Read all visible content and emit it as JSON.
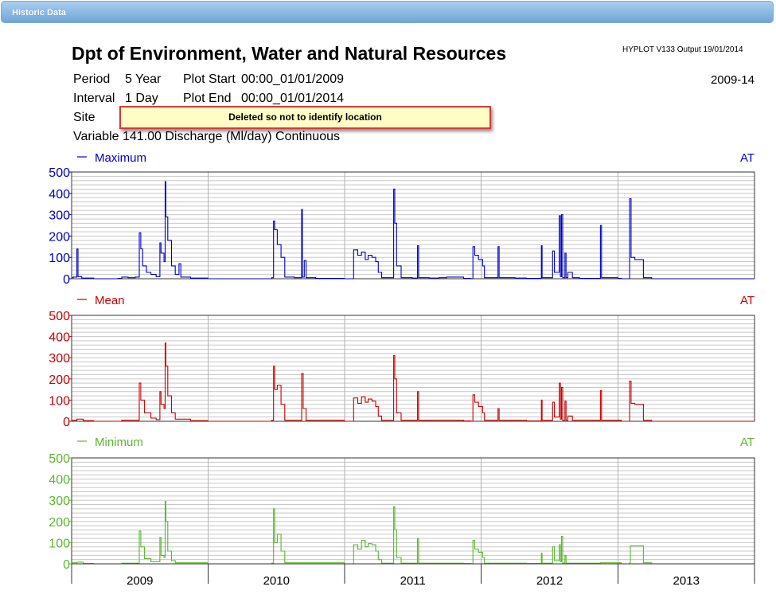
{
  "window": {
    "title": "Historic Data"
  },
  "report": {
    "title": "Dpt of Environment, Water and Natural Resources",
    "version": "HYPLOT V133  Output 19/01/2014",
    "date_range": "2009-14",
    "period_label": "Period",
    "period_value": "5 Year",
    "plot_start_label": "Plot Start",
    "plot_start_value": "00:00_01/01/2009",
    "interval_label": "Interval",
    "interval_value": "1 Day",
    "plot_end_label": "Plot End",
    "plot_end_value": "00:00_01/01/2014",
    "site_label": "Site",
    "site_note": "Deleted so not to identify location",
    "variable_line": "Variable 141.00  Discharge (Ml/day)  Continuous"
  },
  "chart_data": {
    "type": "line",
    "x_categories": [
      "2009",
      "2010",
      "2011",
      "2012",
      "2013"
    ],
    "xlim": [
      "2009-01-01",
      "2014-01-01"
    ],
    "grid": true,
    "series": [
      {
        "name": "Maximum",
        "tag": "AT",
        "color": "#0000cc",
        "ylim": [
          0,
          500
        ],
        "yticks": [
          0,
          100,
          200,
          300,
          400,
          500
        ],
        "points": [
          [
            "2009-01-01",
            5
          ],
          [
            "2009-01-05",
            8
          ],
          [
            "2009-01-15",
            140
          ],
          [
            "2009-01-18",
            10
          ],
          [
            "2009-01-28",
            3
          ],
          [
            "2009-03-01",
            0
          ],
          [
            "2009-05-05",
            2
          ],
          [
            "2009-05-15",
            8
          ],
          [
            "2009-06-01",
            5
          ],
          [
            "2009-06-20",
            8
          ],
          [
            "2009-07-01",
            215
          ],
          [
            "2009-07-05",
            140
          ],
          [
            "2009-07-10",
            60
          ],
          [
            "2009-07-20",
            30
          ],
          [
            "2009-08-01",
            20
          ],
          [
            "2009-08-15",
            10
          ],
          [
            "2009-08-25",
            168
          ],
          [
            "2009-08-28",
            120
          ],
          [
            "2009-09-05",
            80
          ],
          [
            "2009-09-08",
            455
          ],
          [
            "2009-09-10",
            290
          ],
          [
            "2009-09-15",
            180
          ],
          [
            "2009-09-25",
            60
          ],
          [
            "2009-10-05",
            20
          ],
          [
            "2009-10-15",
            70
          ],
          [
            "2009-10-20",
            8
          ],
          [
            "2009-11-15",
            3
          ],
          [
            "2009-12-31",
            0
          ],
          [
            "2010-06-01",
            0
          ],
          [
            "2010-06-20",
            5
          ],
          [
            "2010-06-25",
            270
          ],
          [
            "2010-06-28",
            230
          ],
          [
            "2010-07-05",
            160
          ],
          [
            "2010-07-15",
            100
          ],
          [
            "2010-07-25",
            8
          ],
          [
            "2010-08-20",
            5
          ],
          [
            "2010-09-05",
            5
          ],
          [
            "2010-09-08",
            325
          ],
          [
            "2010-09-10",
            8
          ],
          [
            "2010-09-15",
            85
          ],
          [
            "2010-09-20",
            5
          ],
          [
            "2010-10-15",
            2
          ],
          [
            "2010-12-31",
            0
          ],
          [
            "2011-01-20",
            0
          ],
          [
            "2011-01-25",
            135
          ],
          [
            "2011-02-05",
            110
          ],
          [
            "2011-02-15",
            125
          ],
          [
            "2011-02-25",
            90
          ],
          [
            "2011-03-05",
            110
          ],
          [
            "2011-03-15",
            100
          ],
          [
            "2011-03-25",
            80
          ],
          [
            "2011-04-01",
            30
          ],
          [
            "2011-04-10",
            5
          ],
          [
            "2011-05-08",
            5
          ],
          [
            "2011-05-12",
            420
          ],
          [
            "2011-05-15",
            260
          ],
          [
            "2011-05-20",
            60
          ],
          [
            "2011-06-01",
            5
          ],
          [
            "2011-07-01",
            3
          ],
          [
            "2011-07-15",
            155
          ],
          [
            "2011-07-18",
            5
          ],
          [
            "2011-08-15",
            3
          ],
          [
            "2011-09-10",
            5
          ],
          [
            "2011-10-01",
            8
          ],
          [
            "2011-11-15",
            2
          ],
          [
            "2011-12-05",
            0
          ],
          [
            "2011-12-10",
            150
          ],
          [
            "2011-12-15",
            110
          ],
          [
            "2011-12-25",
            90
          ],
          [
            "2012-01-05",
            60
          ],
          [
            "2012-01-10",
            5
          ],
          [
            "2012-02-15",
            150
          ],
          [
            "2012-02-18",
            5
          ],
          [
            "2012-04-01",
            3
          ],
          [
            "2012-05-01",
            2
          ],
          [
            "2012-06-01",
            2
          ],
          [
            "2012-06-10",
            155
          ],
          [
            "2012-06-12",
            5
          ],
          [
            "2012-07-10",
            130
          ],
          [
            "2012-07-15",
            30
          ],
          [
            "2012-07-28",
            295
          ],
          [
            "2012-07-31",
            10
          ],
          [
            "2012-08-03",
            300
          ],
          [
            "2012-08-06",
            5
          ],
          [
            "2012-08-12",
            120
          ],
          [
            "2012-08-15",
            5
          ],
          [
            "2012-08-20",
            30
          ],
          [
            "2012-09-01",
            5
          ],
          [
            "2012-09-20",
            2
          ],
          [
            "2012-11-15",
            250
          ],
          [
            "2012-11-18",
            5
          ],
          [
            "2013-01-01",
            2
          ],
          [
            "2013-01-10",
            0
          ],
          [
            "2013-02-01",
            375
          ],
          [
            "2013-02-05",
            100
          ],
          [
            "2013-02-15",
            90
          ],
          [
            "2013-03-01",
            90
          ],
          [
            "2013-03-10",
            5
          ],
          [
            "2013-04-01",
            0
          ],
          [
            "2013-12-31",
            0
          ]
        ]
      },
      {
        "name": "Mean",
        "tag": "AT",
        "color": "#cc0000",
        "ylim": [
          0,
          500
        ],
        "yticks": [
          0,
          100,
          200,
          300,
          400,
          500
        ],
        "points": [
          [
            "2009-01-01",
            5
          ],
          [
            "2009-01-15",
            10
          ],
          [
            "2009-02-01",
            3
          ],
          [
            "2009-03-01",
            0
          ],
          [
            "2009-05-15",
            5
          ],
          [
            "2009-06-20",
            5
          ],
          [
            "2009-07-01",
            180
          ],
          [
            "2009-07-05",
            100
          ],
          [
            "2009-07-15",
            40
          ],
          [
            "2009-08-01",
            15
          ],
          [
            "2009-08-15",
            8
          ],
          [
            "2009-08-25",
            140
          ],
          [
            "2009-08-28",
            80
          ],
          [
            "2009-09-05",
            60
          ],
          [
            "2009-09-08",
            370
          ],
          [
            "2009-09-10",
            260
          ],
          [
            "2009-09-15",
            120
          ],
          [
            "2009-09-25",
            40
          ],
          [
            "2009-10-05",
            10
          ],
          [
            "2009-11-15",
            3
          ],
          [
            "2009-12-31",
            0
          ],
          [
            "2010-06-20",
            5
          ],
          [
            "2010-06-25",
            260
          ],
          [
            "2010-06-28",
            150
          ],
          [
            "2010-07-05",
            170
          ],
          [
            "2010-07-15",
            80
          ],
          [
            "2010-07-25",
            5
          ],
          [
            "2010-09-05",
            5
          ],
          [
            "2010-09-08",
            225
          ],
          [
            "2010-09-12",
            60
          ],
          [
            "2010-09-20",
            5
          ],
          [
            "2010-12-31",
            0
          ],
          [
            "2011-01-20",
            0
          ],
          [
            "2011-01-25",
            110
          ],
          [
            "2011-02-05",
            85
          ],
          [
            "2011-02-15",
            115
          ],
          [
            "2011-02-25",
            90
          ],
          [
            "2011-03-05",
            105
          ],
          [
            "2011-03-15",
            95
          ],
          [
            "2011-03-25",
            70
          ],
          [
            "2011-04-01",
            25
          ],
          [
            "2011-04-10",
            5
          ],
          [
            "2011-05-08",
            5
          ],
          [
            "2011-05-12",
            310
          ],
          [
            "2011-05-15",
            200
          ],
          [
            "2011-05-20",
            40
          ],
          [
            "2011-06-01",
            5
          ],
          [
            "2011-07-15",
            140
          ],
          [
            "2011-07-18",
            5
          ],
          [
            "2011-10-01",
            5
          ],
          [
            "2011-11-15",
            2
          ],
          [
            "2011-12-05",
            0
          ],
          [
            "2011-12-10",
            125
          ],
          [
            "2011-12-15",
            90
          ],
          [
            "2011-12-25",
            70
          ],
          [
            "2012-01-05",
            40
          ],
          [
            "2012-01-10",
            5
          ],
          [
            "2012-02-15",
            60
          ],
          [
            "2012-02-18",
            5
          ],
          [
            "2012-05-01",
            2
          ],
          [
            "2012-06-10",
            100
          ],
          [
            "2012-06-12",
            5
          ],
          [
            "2012-07-10",
            90
          ],
          [
            "2012-07-15",
            20
          ],
          [
            "2012-07-28",
            180
          ],
          [
            "2012-07-31",
            10
          ],
          [
            "2012-08-03",
            160
          ],
          [
            "2012-08-06",
            5
          ],
          [
            "2012-08-12",
            95
          ],
          [
            "2012-08-15",
            5
          ],
          [
            "2012-08-20",
            25
          ],
          [
            "2012-09-01",
            5
          ],
          [
            "2012-11-15",
            145
          ],
          [
            "2012-11-18",
            5
          ],
          [
            "2013-01-10",
            0
          ],
          [
            "2013-02-01",
            190
          ],
          [
            "2013-02-05",
            85
          ],
          [
            "2013-02-15",
            80
          ],
          [
            "2013-03-01",
            80
          ],
          [
            "2013-03-10",
            5
          ],
          [
            "2013-04-01",
            0
          ],
          [
            "2013-12-31",
            0
          ]
        ]
      },
      {
        "name": "Minimum",
        "tag": "AT",
        "color": "#5bb82e",
        "ylim": [
          0,
          500
        ],
        "yticks": [
          0,
          100,
          200,
          300,
          400,
          500
        ],
        "points": [
          [
            "2009-01-01",
            5
          ],
          [
            "2009-01-15",
            8
          ],
          [
            "2009-02-01",
            2
          ],
          [
            "2009-03-01",
            0
          ],
          [
            "2009-05-15",
            3
          ],
          [
            "2009-07-01",
            155
          ],
          [
            "2009-07-05",
            80
          ],
          [
            "2009-07-15",
            25
          ],
          [
            "2009-08-01",
            10
          ],
          [
            "2009-08-25",
            125
          ],
          [
            "2009-08-28",
            40
          ],
          [
            "2009-09-05",
            30
          ],
          [
            "2009-09-08",
            295
          ],
          [
            "2009-09-10",
            200
          ],
          [
            "2009-09-15",
            60
          ],
          [
            "2009-09-25",
            15
          ],
          [
            "2009-10-05",
            5
          ],
          [
            "2009-12-31",
            0
          ],
          [
            "2010-06-20",
            3
          ],
          [
            "2010-06-25",
            260
          ],
          [
            "2010-06-28",
            100
          ],
          [
            "2010-07-05",
            140
          ],
          [
            "2010-07-15",
            60
          ],
          [
            "2010-07-25",
            5
          ],
          [
            "2010-09-20",
            5
          ],
          [
            "2010-10-15",
            5
          ],
          [
            "2010-12-31",
            0
          ],
          [
            "2011-01-20",
            0
          ],
          [
            "2011-01-25",
            90
          ],
          [
            "2011-02-05",
            70
          ],
          [
            "2011-02-15",
            110
          ],
          [
            "2011-02-25",
            80
          ],
          [
            "2011-03-05",
            95
          ],
          [
            "2011-03-15",
            90
          ],
          [
            "2011-03-25",
            60
          ],
          [
            "2011-04-01",
            20
          ],
          [
            "2011-04-10",
            3
          ],
          [
            "2011-05-08",
            3
          ],
          [
            "2011-05-12",
            270
          ],
          [
            "2011-05-15",
            160
          ],
          [
            "2011-05-20",
            30
          ],
          [
            "2011-06-01",
            3
          ],
          [
            "2011-07-15",
            120
          ],
          [
            "2011-07-18",
            3
          ],
          [
            "2011-10-01",
            3
          ],
          [
            "2011-11-15",
            2
          ],
          [
            "2011-12-05",
            0
          ],
          [
            "2011-12-10",
            110
          ],
          [
            "2011-12-15",
            70
          ],
          [
            "2011-12-25",
            55
          ],
          [
            "2012-01-05",
            30
          ],
          [
            "2012-01-10",
            3
          ],
          [
            "2012-05-01",
            2
          ],
          [
            "2012-06-10",
            50
          ],
          [
            "2012-06-12",
            3
          ],
          [
            "2012-07-10",
            80
          ],
          [
            "2012-07-15",
            15
          ],
          [
            "2012-07-28",
            90
          ],
          [
            "2012-07-31",
            10
          ],
          [
            "2012-08-03",
            130
          ],
          [
            "2012-08-06",
            3
          ],
          [
            "2012-08-12",
            40
          ],
          [
            "2012-08-15",
            3
          ],
          [
            "2012-09-01",
            3
          ],
          [
            "2012-11-15",
            5
          ],
          [
            "2013-01-10",
            0
          ],
          [
            "2013-02-01",
            5
          ],
          [
            "2013-02-03",
            85
          ],
          [
            "2013-02-15",
            85
          ],
          [
            "2013-03-01",
            85
          ],
          [
            "2013-03-10",
            5
          ],
          [
            "2013-04-01",
            0
          ],
          [
            "2013-12-31",
            0
          ]
        ]
      }
    ]
  }
}
